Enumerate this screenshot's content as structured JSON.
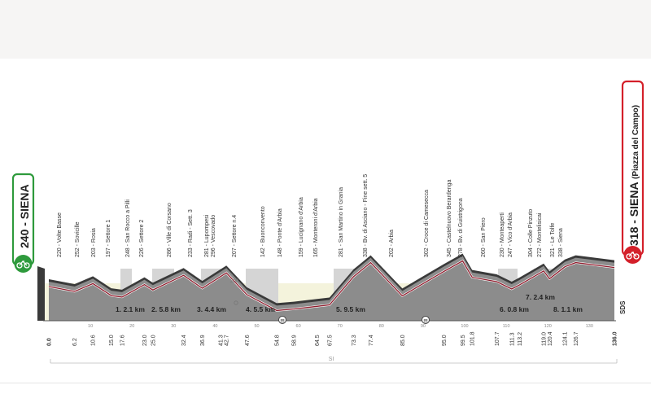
{
  "start": {
    "altitude": "240",
    "name": "SIENA"
  },
  "finish": {
    "altitude": "318",
    "name": "SIENA",
    "sub": "(Piazza del Campo)"
  },
  "colors": {
    "profile_gray": "#8c8c8c",
    "profile_dark": "#3a3a3a",
    "road_red": "#8e1b2c",
    "base_yellow": "#f4f3dc",
    "sector_gray": "#d5d5d5",
    "start_green": "#2e9a3c",
    "finish_red": "#d4202a"
  },
  "icons": {
    "start": "bicycle-icon",
    "finish": "bicycle-icon"
  },
  "places": [
    {
      "alt": "220",
      "name": "Volte Basse"
    },
    {
      "alt": "252",
      "name": "Sovicille"
    },
    {
      "alt": "203",
      "name": "Rosia"
    },
    {
      "alt": "197",
      "name": "Settore 1"
    },
    {
      "alt": "248",
      "name": "San Rocco a Pilli"
    },
    {
      "alt": "226",
      "name": "Settore 2"
    },
    {
      "alt": "286",
      "name": "Ville di Corsano"
    },
    {
      "alt": "233",
      "name": "Radi - Sett. 3"
    },
    {
      "alt": "281",
      "name": "Lupompesi"
    },
    {
      "alt": "296",
      "name": "Vescovado"
    },
    {
      "alt": "207",
      "name": "Settore n.4"
    },
    {
      "alt": "142",
      "name": "Buonconvento"
    },
    {
      "alt": "148",
      "name": "Ponte d'Arbia"
    },
    {
      "alt": "159",
      "name": "Lucignano d'Arbia"
    },
    {
      "alt": "165",
      "name": "Monteroni d'Arbia"
    },
    {
      "alt": "281",
      "name": "San Martino in Grania"
    },
    {
      "alt": "338",
      "name": "Bv. di Asciano - Fine sett. 5"
    },
    {
      "alt": "202",
      "name": "Arbia"
    },
    {
      "alt": "302",
      "name": "Croce di Camesecca"
    },
    {
      "alt": "345",
      "name": "Castelnuovo Berardenga"
    },
    {
      "alt": "278",
      "name": "Bv. di Guistrigona"
    },
    {
      "alt": "260",
      "name": "San Piero"
    },
    {
      "alt": "230",
      "name": "Monteaperti"
    },
    {
      "alt": "247",
      "name": "Vico d'Arbia"
    },
    {
      "alt": "304",
      "name": "Colle Pinzuto"
    },
    {
      "alt": "272",
      "name": "Montelisicai"
    },
    {
      "alt": "321",
      "name": "Le Tolfe"
    },
    {
      "alt": "338",
      "name": "Siena"
    }
  ],
  "km_marks": [
    "0.0",
    "6.2",
    "10.6",
    "15.0",
    "17.6",
    "23.0",
    "25.0",
    "32.4",
    "36.9",
    "41.3",
    "42.7",
    "47.6",
    "54.8",
    "58.9",
    "64.5",
    "67.5",
    "73.3",
    "77.4",
    "85.0",
    "95.0",
    "99.5",
    "101.8",
    "107.7",
    "111.3",
    "113.2",
    "119.0",
    "120.4",
    "124.1",
    "126.7",
    "136.0"
  ],
  "scale_ticks": [
    "10",
    "20",
    "30",
    "40",
    "50",
    "60",
    "70",
    "80",
    "90",
    "100",
    "110",
    "120",
    "130"
  ],
  "sectors": [
    {
      "label": "1. 2.1 km"
    },
    {
      "label": "2. 5.8 km"
    },
    {
      "label": "3. 4.4 km"
    },
    {
      "label": "4. 5.5 km"
    },
    {
      "label": "5. 9.5 km"
    },
    {
      "label": "6. 0.8 km"
    },
    {
      "label": "7. 2.4 km"
    },
    {
      "label": "8. 1.1 km"
    }
  ],
  "altitude_tick": "200",
  "side_label": "SDS",
  "province": "SI"
}
